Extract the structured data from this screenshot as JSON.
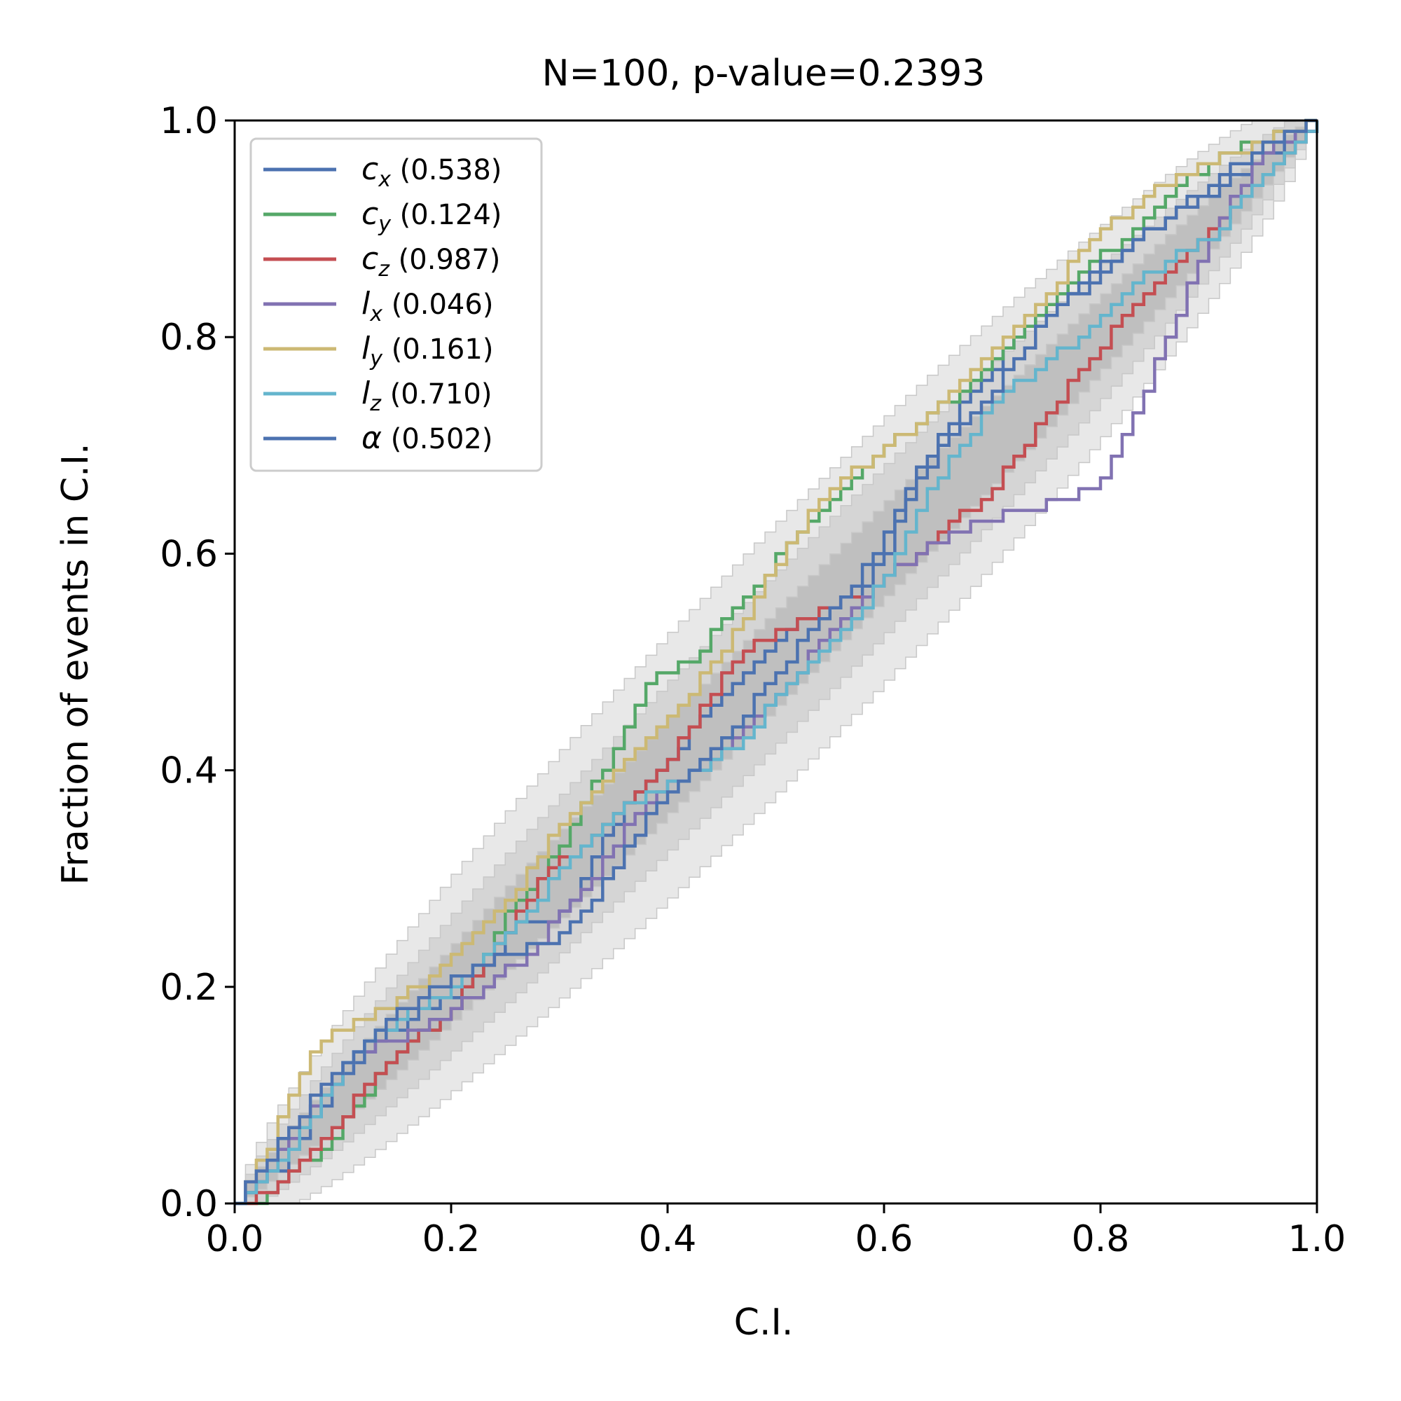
{
  "chart_data": {
    "type": "line",
    "title": "N=100, p-value=0.2393",
    "xlabel": "C.I.",
    "ylabel": "Fraction of events in C.I.",
    "xlim": [
      0,
      1
    ],
    "ylim": [
      0,
      1
    ],
    "x_ticks": [
      "0.0",
      "0.2",
      "0.4",
      "0.6",
      "0.8",
      "1.0"
    ],
    "y_ticks": [
      "0.0",
      "0.2",
      "0.4",
      "0.6",
      "0.8",
      "1.0"
    ],
    "grid": false,
    "legend_position": "top-left",
    "confidence_bands": [
      {
        "level": "inner",
        "color": "#bdbdbd",
        "half_width_max": 0.05
      },
      {
        "level": "middle",
        "color": "#d3d3d3",
        "half_width_max": 0.085
      },
      {
        "level": "outer",
        "color": "#e6e6e6",
        "half_width_max": 0.13
      }
    ],
    "series": [
      {
        "name": "c",
        "sub": "x",
        "pvalue": "(0.538)",
        "color": "#4c72b0",
        "points": [
          [
            0,
            0
          ],
          [
            0.02,
            0.02
          ],
          [
            0.04,
            0.03
          ],
          [
            0.07,
            0.08
          ],
          [
            0.1,
            0.12
          ],
          [
            0.13,
            0.15
          ],
          [
            0.16,
            0.17
          ],
          [
            0.2,
            0.19
          ],
          [
            0.23,
            0.22
          ],
          [
            0.26,
            0.26
          ],
          [
            0.29,
            0.26
          ],
          [
            0.31,
            0.28
          ],
          [
            0.34,
            0.34
          ],
          [
            0.37,
            0.38
          ],
          [
            0.4,
            0.41
          ],
          [
            0.43,
            0.45
          ],
          [
            0.46,
            0.48
          ],
          [
            0.48,
            0.5
          ],
          [
            0.52,
            0.54
          ],
          [
            0.55,
            0.55
          ],
          [
            0.58,
            0.57
          ],
          [
            0.6,
            0.6
          ],
          [
            0.62,
            0.66
          ],
          [
            0.65,
            0.71
          ],
          [
            0.69,
            0.76
          ],
          [
            0.72,
            0.8
          ],
          [
            0.76,
            0.83
          ],
          [
            0.79,
            0.85
          ],
          [
            0.82,
            0.88
          ],
          [
            0.86,
            0.91
          ],
          [
            0.9,
            0.93
          ],
          [
            0.94,
            0.96
          ],
          [
            1,
            1
          ]
        ]
      },
      {
        "name": "c",
        "sub": "y",
        "pvalue": "(0.124)",
        "color": "#55a868",
        "points": [
          [
            0,
            0
          ],
          [
            0.02,
            0
          ],
          [
            0.05,
            0.03
          ],
          [
            0.08,
            0.05
          ],
          [
            0.11,
            0.09
          ],
          [
            0.15,
            0.14
          ],
          [
            0.19,
            0.17
          ],
          [
            0.22,
            0.21
          ],
          [
            0.25,
            0.27
          ],
          [
            0.28,
            0.3
          ],
          [
            0.31,
            0.35
          ],
          [
            0.35,
            0.42
          ],
          [
            0.38,
            0.48
          ],
          [
            0.42,
            0.5
          ],
          [
            0.45,
            0.54
          ],
          [
            0.48,
            0.57
          ],
          [
            0.51,
            0.61
          ],
          [
            0.55,
            0.65
          ],
          [
            0.59,
            0.69
          ],
          [
            0.63,
            0.72
          ],
          [
            0.67,
            0.75
          ],
          [
            0.7,
            0.78
          ],
          [
            0.74,
            0.82
          ],
          [
            0.78,
            0.86
          ],
          [
            0.82,
            0.89
          ],
          [
            0.86,
            0.93
          ],
          [
            0.9,
            0.96
          ],
          [
            0.94,
            0.98
          ],
          [
            1,
            1
          ]
        ]
      },
      {
        "name": "c",
        "sub": "z",
        "pvalue": "(0.987)",
        "color": "#c44e52",
        "points": [
          [
            0,
            0
          ],
          [
            0.03,
            0.01
          ],
          [
            0.06,
            0.04
          ],
          [
            0.09,
            0.07
          ],
          [
            0.12,
            0.11
          ],
          [
            0.15,
            0.14
          ],
          [
            0.19,
            0.17
          ],
          [
            0.22,
            0.21
          ],
          [
            0.25,
            0.25
          ],
          [
            0.28,
            0.3
          ],
          [
            0.32,
            0.33
          ],
          [
            0.36,
            0.37
          ],
          [
            0.4,
            0.41
          ],
          [
            0.43,
            0.46
          ],
          [
            0.47,
            0.51
          ],
          [
            0.51,
            0.53
          ],
          [
            0.55,
            0.55
          ],
          [
            0.59,
            0.57
          ],
          [
            0.63,
            0.6
          ],
          [
            0.66,
            0.63
          ],
          [
            0.69,
            0.65
          ],
          [
            0.72,
            0.69
          ],
          [
            0.75,
            0.73
          ],
          [
            0.79,
            0.78
          ],
          [
            0.82,
            0.82
          ],
          [
            0.86,
            0.86
          ],
          [
            0.9,
            0.9
          ],
          [
            0.94,
            0.94
          ],
          [
            1,
            1
          ]
        ]
      },
      {
        "name": "l",
        "sub": "x",
        "pvalue": "(0.046)",
        "color": "#8172b2",
        "points": [
          [
            0,
            0
          ],
          [
            0.02,
            0.02
          ],
          [
            0.05,
            0.06
          ],
          [
            0.08,
            0.1
          ],
          [
            0.11,
            0.14
          ],
          [
            0.15,
            0.15
          ],
          [
            0.19,
            0.17
          ],
          [
            0.23,
            0.2
          ],
          [
            0.27,
            0.23
          ],
          [
            0.3,
            0.27
          ],
          [
            0.33,
            0.3
          ],
          [
            0.36,
            0.35
          ],
          [
            0.39,
            0.38
          ],
          [
            0.43,
            0.4
          ],
          [
            0.47,
            0.44
          ],
          [
            0.51,
            0.48
          ],
          [
            0.55,
            0.53
          ],
          [
            0.59,
            0.57
          ],
          [
            0.63,
            0.6
          ],
          [
            0.68,
            0.63
          ],
          [
            0.73,
            0.64
          ],
          [
            0.77,
            0.65
          ],
          [
            0.8,
            0.67
          ],
          [
            0.83,
            0.73
          ],
          [
            0.86,
            0.8
          ],
          [
            0.89,
            0.87
          ],
          [
            0.92,
            0.93
          ],
          [
            0.95,
            0.97
          ],
          [
            1,
            1
          ]
        ]
      },
      {
        "name": "l",
        "sub": "y",
        "pvalue": "(0.161)",
        "color": "#ccb974",
        "points": [
          [
            0,
            0
          ],
          [
            0.01,
            0.02
          ],
          [
            0.03,
            0.05
          ],
          [
            0.05,
            0.1
          ],
          [
            0.07,
            0.14
          ],
          [
            0.09,
            0.16
          ],
          [
            0.12,
            0.17
          ],
          [
            0.15,
            0.19
          ],
          [
            0.18,
            0.21
          ],
          [
            0.22,
            0.25
          ],
          [
            0.26,
            0.29
          ],
          [
            0.29,
            0.34
          ],
          [
            0.33,
            0.38
          ],
          [
            0.37,
            0.42
          ],
          [
            0.41,
            0.46
          ],
          [
            0.45,
            0.51
          ],
          [
            0.48,
            0.56
          ],
          [
            0.51,
            0.61
          ],
          [
            0.55,
            0.66
          ],
          [
            0.59,
            0.69
          ],
          [
            0.63,
            0.72
          ],
          [
            0.67,
            0.76
          ],
          [
            0.71,
            0.8
          ],
          [
            0.75,
            0.84
          ],
          [
            0.79,
            0.89
          ],
          [
            0.83,
            0.92
          ],
          [
            0.87,
            0.95
          ],
          [
            0.92,
            0.97
          ],
          [
            1,
            1
          ]
        ]
      },
      {
        "name": "l",
        "sub": "z",
        "pvalue": "(0.710)",
        "color": "#64b5cd",
        "points": [
          [
            0,
            0
          ],
          [
            0.02,
            0.02
          ],
          [
            0.05,
            0.05
          ],
          [
            0.08,
            0.1
          ],
          [
            0.11,
            0.14
          ],
          [
            0.15,
            0.17
          ],
          [
            0.19,
            0.19
          ],
          [
            0.23,
            0.23
          ],
          [
            0.27,
            0.27
          ],
          [
            0.31,
            0.32
          ],
          [
            0.35,
            0.36
          ],
          [
            0.39,
            0.38
          ],
          [
            0.43,
            0.4
          ],
          [
            0.47,
            0.43
          ],
          [
            0.5,
            0.47
          ],
          [
            0.54,
            0.51
          ],
          [
            0.58,
            0.55
          ],
          [
            0.61,
            0.6
          ],
          [
            0.64,
            0.66
          ],
          [
            0.67,
            0.7
          ],
          [
            0.7,
            0.74
          ],
          [
            0.74,
            0.77
          ],
          [
            0.78,
            0.8
          ],
          [
            0.82,
            0.84
          ],
          [
            0.86,
            0.87
          ],
          [
            0.9,
            0.89
          ],
          [
            0.94,
            0.94
          ],
          [
            1,
            1
          ]
        ]
      },
      {
        "name": "α",
        "sub": "",
        "pvalue": "(0.502)",
        "color": "#4c72b0",
        "points": [
          [
            0,
            0
          ],
          [
            0.02,
            0.03
          ],
          [
            0.05,
            0.07
          ],
          [
            0.08,
            0.11
          ],
          [
            0.11,
            0.14
          ],
          [
            0.14,
            0.17
          ],
          [
            0.17,
            0.19
          ],
          [
            0.21,
            0.21
          ],
          [
            0.25,
            0.23
          ],
          [
            0.29,
            0.24
          ],
          [
            0.33,
            0.28
          ],
          [
            0.36,
            0.33
          ],
          [
            0.39,
            0.37
          ],
          [
            0.42,
            0.4
          ],
          [
            0.46,
            0.44
          ],
          [
            0.5,
            0.49
          ],
          [
            0.53,
            0.53
          ],
          [
            0.57,
            0.57
          ],
          [
            0.6,
            0.62
          ],
          [
            0.63,
            0.67
          ],
          [
            0.66,
            0.71
          ],
          [
            0.69,
            0.74
          ],
          [
            0.72,
            0.78
          ],
          [
            0.75,
            0.82
          ],
          [
            0.78,
            0.85
          ],
          [
            0.82,
            0.88
          ],
          [
            0.86,
            0.91
          ],
          [
            0.9,
            0.94
          ],
          [
            0.94,
            0.97
          ],
          [
            1,
            1
          ]
        ]
      }
    ]
  }
}
